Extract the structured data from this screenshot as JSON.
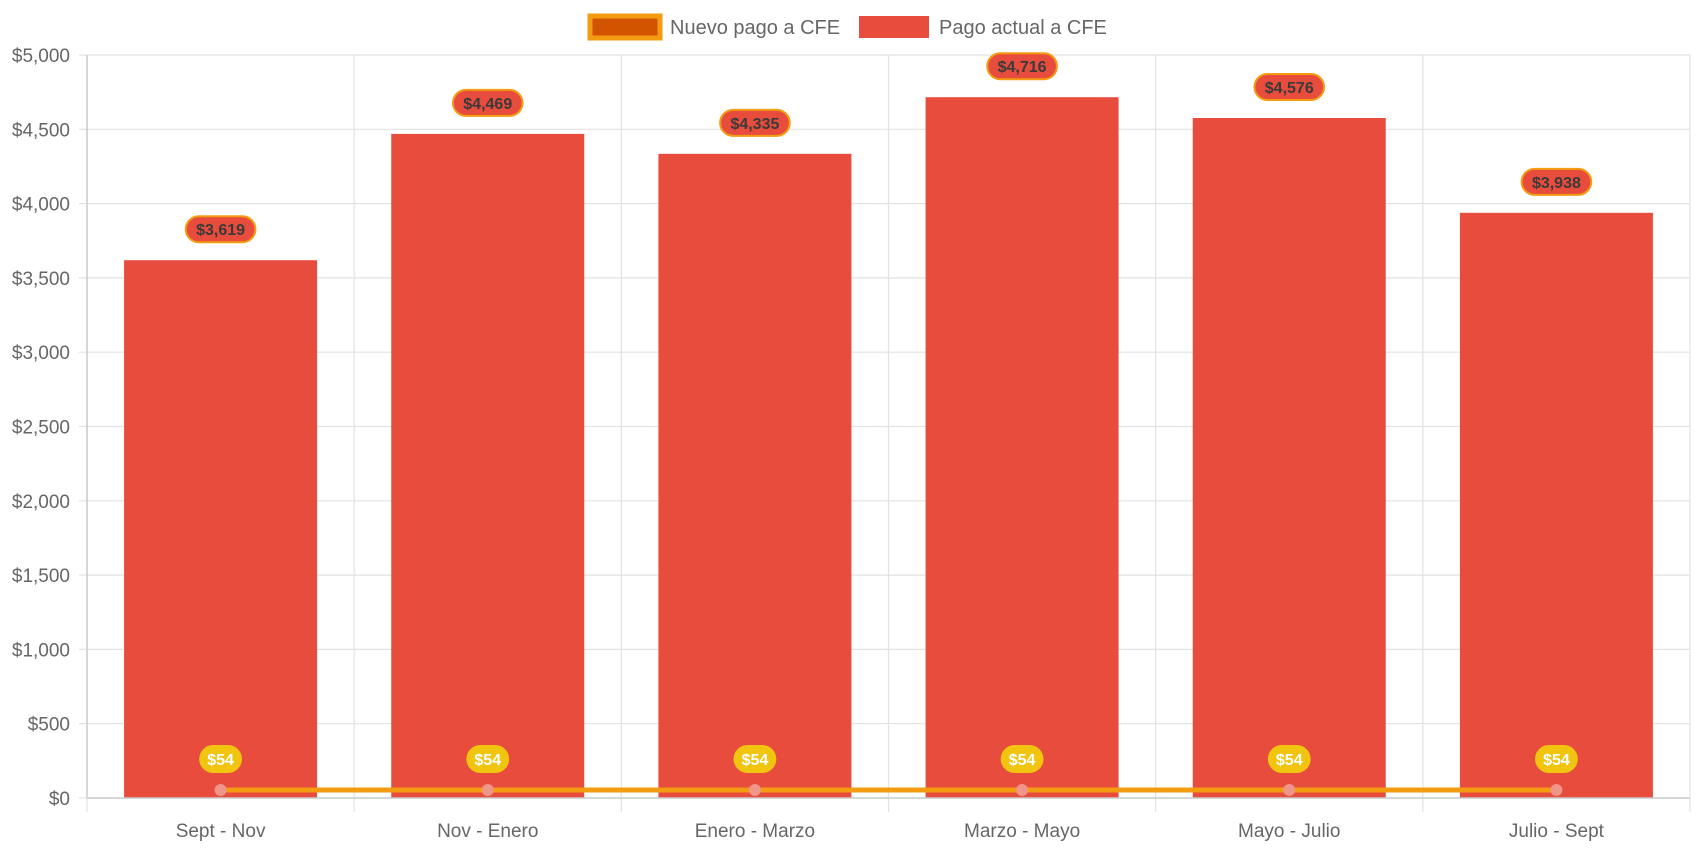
{
  "chart_data": {
    "type": "bar",
    "categories": [
      "Sept - Nov",
      "Nov - Enero",
      "Enero - Marzo",
      "Marzo - Mayo",
      "Mayo - Julio",
      "Julio - Sept"
    ],
    "series": [
      {
        "name": "Nuevo pago a CFE",
        "kind": "line",
        "values": [
          54,
          54,
          54,
          54,
          54,
          54
        ],
        "labels": [
          "$54",
          "$54",
          "$54",
          "$54",
          "$54",
          "$54"
        ]
      },
      {
        "name": "Pago actual a CFE",
        "kind": "bar",
        "values": [
          3619,
          4469,
          4335,
          4716,
          4576,
          3938
        ],
        "labels": [
          "$3,619",
          "$4,469",
          "$4,335",
          "$4,716",
          "$4,576",
          "$3,938"
        ]
      }
    ],
    "ylim": [
      0,
      5000
    ],
    "yticks": [
      0,
      500,
      1000,
      1500,
      2000,
      2500,
      3000,
      3500,
      4000,
      4500,
      5000
    ],
    "ytick_labels": [
      "$0",
      "$500",
      "$1,000",
      "$1,500",
      "$2,000",
      "$2,500",
      "$3,000",
      "$3,500",
      "$4,000",
      "$4,500",
      "$5,000"
    ],
    "grid": true,
    "legend_position": "top"
  },
  "colors": {
    "bar_fill": "#e74c3c",
    "line": "#f39c12",
    "legend_line_fill": "#d35400",
    "point_fill": "#f1948a",
    "line_label_bg": "#f1c40f",
    "bar_label_border": "#f39c12",
    "grid": "#e2e2e2",
    "axis": "#cccccc",
    "tick_text": "#666666"
  }
}
